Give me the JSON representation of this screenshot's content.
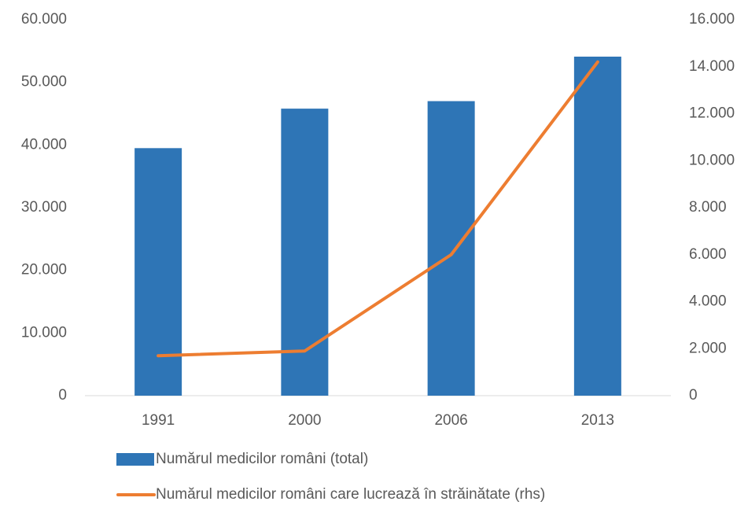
{
  "chart_data": {
    "type": "bar_line",
    "categories": [
      "1991",
      "2000",
      "2006",
      "2013"
    ],
    "series": [
      {
        "name": "Numărul medicilor români (total)",
        "type": "bar",
        "color": "#2e75b6",
        "values": [
          39500,
          45800,
          47000,
          54100
        ]
      },
      {
        "name": "Numărul medicilor români care lucrează în străinătate  (rhs)",
        "type": "line",
        "axis": "y2",
        "color": "#ed7d31",
        "values": [
          1700,
          1900,
          6000,
          14200
        ]
      }
    ],
    "ylim": [
      0,
      60000
    ],
    "yticks": [
      0,
      {
        "value": 10000,
        "label": "10.000"
      },
      {
        "value": 20000,
        "label": "20.000"
      },
      {
        "value": 30000,
        "label": "30.000"
      },
      {
        "value": 40000,
        "label": "40.000"
      },
      {
        "value": 50000,
        "label": "50.000"
      },
      {
        "value": 60000,
        "label": "60.000"
      }
    ],
    "y2lim": [
      0,
      16000
    ],
    "y2ticks": [
      0,
      {
        "value": 2000,
        "label": "2.000"
      },
      {
        "value": 4000,
        "label": "4.000"
      },
      {
        "value": 6000,
        "label": "6.000"
      },
      {
        "value": 8000,
        "label": "8.000"
      },
      {
        "value": 10000,
        "label": "10.000"
      },
      {
        "value": 12000,
        "label": "12.000"
      },
      {
        "value": 14000,
        "label": "14.000"
      },
      {
        "value": 16000,
        "label": "16.000"
      }
    ],
    "grid": false,
    "legend": "bottom"
  }
}
